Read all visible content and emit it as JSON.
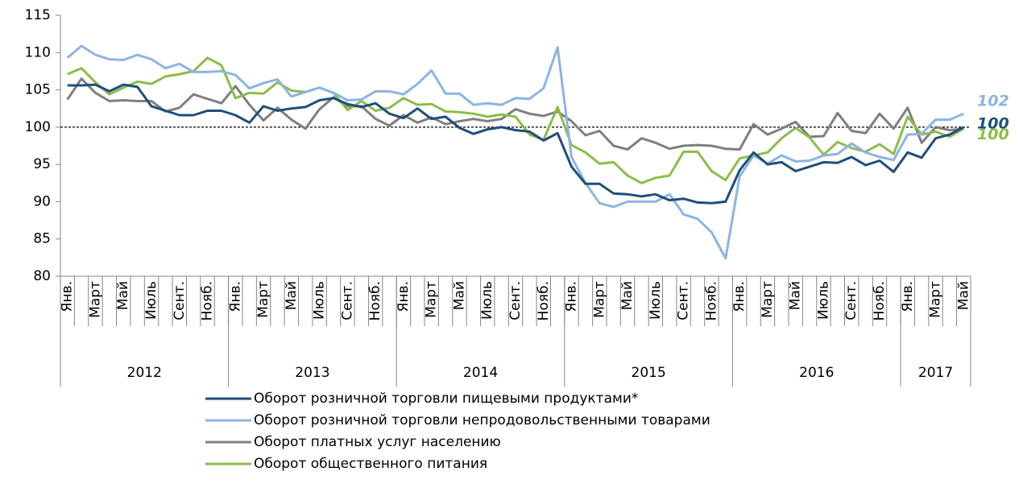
{
  "chart_data": {
    "type": "line",
    "categories": [
      "Янв.",
      null,
      "Март",
      null,
      "Май",
      null,
      "Июль",
      null,
      "Сент.",
      null,
      "Нояб.",
      null,
      "Янв.",
      null,
      "Март",
      null,
      "Май",
      null,
      "Июль",
      null,
      "Сент.",
      null,
      "Нояб.",
      null,
      "Янв.",
      null,
      "Март",
      null,
      "Май",
      null,
      "Июль",
      null,
      "Сент.",
      null,
      "Нояб.",
      null,
      "Янв.",
      null,
      "Март",
      null,
      "Май",
      null,
      "Июль",
      null,
      "Сент.",
      null,
      "Нояб.",
      null,
      "Янв.",
      null,
      "Март",
      null,
      "Май",
      null,
      "Июль",
      null,
      "Сент.",
      null,
      "Нояб.",
      null,
      "Янв.",
      null,
      "Март",
      null,
      "Май"
    ],
    "x_groups": [
      "2012",
      "2013",
      "2014",
      "2015",
      "2016",
      "2017"
    ],
    "ylim": [
      80,
      115
    ],
    "yticks": [
      80,
      85,
      90,
      95,
      100,
      105,
      110,
      115
    ],
    "grid": false,
    "reference_line": 100,
    "series": [
      {
        "name": "Оборот розничной торговли пищевыми продуктами*",
        "color": "#1f4e79",
        "end_label": "100",
        "values": [
          105.6,
          105.6,
          105.7,
          104.8,
          105.7,
          105.4,
          102.8,
          102.2,
          101.6,
          101.6,
          102.2,
          102.2,
          101.6,
          100.6,
          102.8,
          102.2,
          102.5,
          102.7,
          103.6,
          103.9,
          103.1,
          102.7,
          103.2,
          101.8,
          101.2,
          102.5,
          101.1,
          101.4,
          99.9,
          99.1,
          99.7,
          100.0,
          99.6,
          99.4,
          98.2,
          99.2,
          94.7,
          92.4,
          92.4,
          91.1,
          91.0,
          90.7,
          91.0,
          90.2,
          90.4,
          89.9,
          89.8,
          90.0,
          94.2,
          96.6,
          95.0,
          95.3,
          94.1,
          94.7,
          95.3,
          95.2,
          96.0,
          94.9,
          95.5,
          94.0,
          96.6,
          95.9,
          98.5,
          99.0,
          100.0
        ]
      },
      {
        "name": "Оборот розничной торговли непродовольственными товарами",
        "color": "#8db4e2",
        "end_label": "102",
        "values": [
          109.3,
          110.9,
          109.7,
          109.1,
          109.0,
          109.7,
          109.1,
          107.9,
          108.5,
          107.4,
          107.4,
          107.5,
          107.0,
          105.2,
          105.9,
          106.4,
          104.1,
          104.7,
          105.3,
          104.6,
          103.6,
          103.7,
          104.8,
          104.8,
          104.4,
          105.8,
          107.6,
          104.5,
          104.5,
          103.0,
          103.2,
          103.0,
          103.9,
          103.8,
          105.2,
          110.7,
          96.0,
          92.5,
          89.8,
          89.3,
          90.0,
          90.0,
          90.0,
          91.0,
          88.3,
          87.7,
          85.9,
          82.4,
          93.4,
          96.2,
          95.1,
          96.2,
          95.4,
          95.5,
          96.2,
          96.4,
          97.8,
          96.6,
          96.0,
          95.6,
          99.0,
          99.1,
          101.0,
          101.0,
          101.8
        ]
      },
      {
        "name": "Оборот платных услуг населению",
        "color": "#7f7f7f",
        "values": [
          103.7,
          106.5,
          104.6,
          103.5,
          103.6,
          103.5,
          103.5,
          102.1,
          102.6,
          104.4,
          103.8,
          103.2,
          105.5,
          103.0,
          100.9,
          102.6,
          101.0,
          99.8,
          102.4,
          104.0,
          102.8,
          102.8,
          101.1,
          100.2,
          101.6,
          100.6,
          101.3,
          100.4,
          100.8,
          101.1,
          100.8,
          101.1,
          102.4,
          101.8,
          101.5,
          102.1,
          100.8,
          98.9,
          99.5,
          97.5,
          97.0,
          98.5,
          97.9,
          97.1,
          97.5,
          97.6,
          97.5,
          97.1,
          97.0,
          100.4,
          99.0,
          99.8,
          100.7,
          98.7,
          98.8,
          101.9,
          99.5,
          99.2,
          101.8,
          99.8,
          102.6,
          97.9,
          100.0,
          99.6,
          99.8
        ]
      },
      {
        "name": "Оборот общественного питания",
        "color": "#8cbd4a",
        "end_label": "100",
        "values": [
          107.1,
          107.9,
          106.0,
          104.4,
          105.3,
          106.1,
          105.8,
          106.8,
          107.1,
          107.5,
          109.3,
          108.3,
          103.9,
          104.6,
          104.5,
          106.0,
          104.9,
          104.7,
          105.3,
          104.6,
          102.3,
          103.5,
          102.2,
          102.6,
          103.9,
          103.0,
          103.1,
          102.1,
          102.0,
          101.8,
          101.4,
          101.7,
          101.4,
          99.0,
          98.3,
          102.7,
          97.6,
          96.6,
          95.1,
          95.3,
          93.5,
          92.5,
          93.2,
          93.5,
          96.7,
          96.7,
          94.1,
          92.9,
          95.8,
          96.2,
          96.6,
          98.5,
          99.9,
          98.6,
          96.3,
          98.0,
          97.2,
          96.7,
          97.7,
          96.4,
          101.4,
          99.0,
          99.4,
          98.7,
          99.8
        ]
      }
    ]
  }
}
